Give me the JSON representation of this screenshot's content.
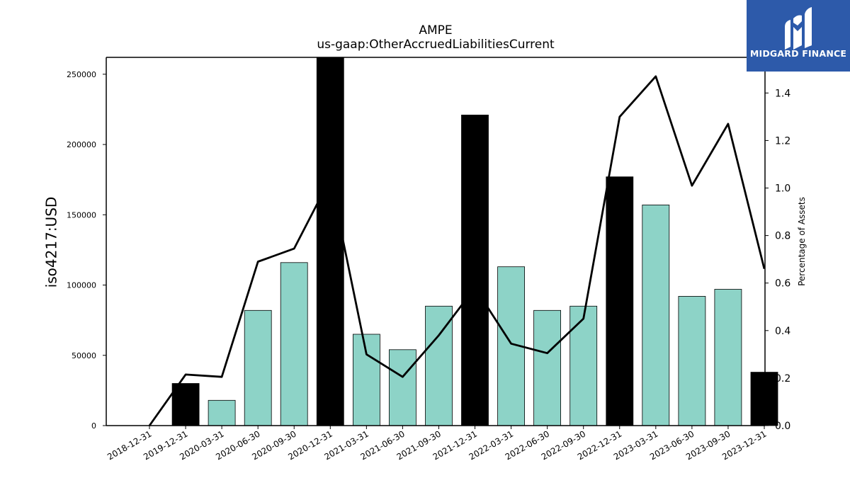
{
  "title": "AMPE",
  "subtitle": "us-gaap:OtherAccruedLiabilitiesCurrent",
  "brand": {
    "name": "MIDGARD FINANCE",
    "color": "#2d5aaa"
  },
  "chart_data": {
    "type": "bar",
    "categories": [
      "2018-12-31",
      "2019-12-31",
      "2020-03-31",
      "2020-06-30",
      "2020-09-30",
      "2020-12-31",
      "2021-03-31",
      "2021-06-30",
      "2021-09-30",
      "2021-12-31",
      "2022-03-31",
      "2022-06-30",
      "2022-09-30",
      "2022-12-31",
      "2023-03-31",
      "2023-06-30",
      "2023-09-30",
      "2023-12-31"
    ],
    "series": [
      {
        "type": "bar",
        "axis": "left",
        "values": [
          null,
          30000,
          18000,
          82000,
          116000,
          262000,
          65000,
          54000,
          85000,
          221000,
          113000,
          82000,
          85000,
          177000,
          157000,
          92000,
          97000,
          38000
        ],
        "highlight": [
          false,
          true,
          false,
          false,
          false,
          true,
          false,
          false,
          false,
          true,
          false,
          false,
          false,
          true,
          false,
          false,
          false,
          true
        ],
        "colors": {
          "normal": "#8dd3c7",
          "highlight": "#000000"
        }
      },
      {
        "type": "line",
        "axis": "right",
        "values": [
          0.0,
          0.215,
          0.205,
          0.69,
          0.745,
          1.04,
          0.3,
          0.205,
          0.38,
          0.58,
          0.345,
          0.305,
          0.45,
          1.3,
          1.47,
          1.01,
          1.27,
          0.66
        ],
        "color": "#000000"
      }
    ],
    "ylabel": "iso4217:USD",
    "ylabel_right": "Percentage of Assets",
    "ylim": [
      0,
      262000
    ],
    "ylim_right": [
      0,
      1.55
    ],
    "yticks": [
      "0",
      "50000",
      "100000",
      "150000",
      "200000",
      "250000"
    ],
    "yticks_right": [
      "0.0",
      "0.2",
      "0.4",
      "0.6",
      "0.8",
      "1.0",
      "1.2",
      "1.4"
    ],
    "grid": false,
    "legend": "none"
  }
}
